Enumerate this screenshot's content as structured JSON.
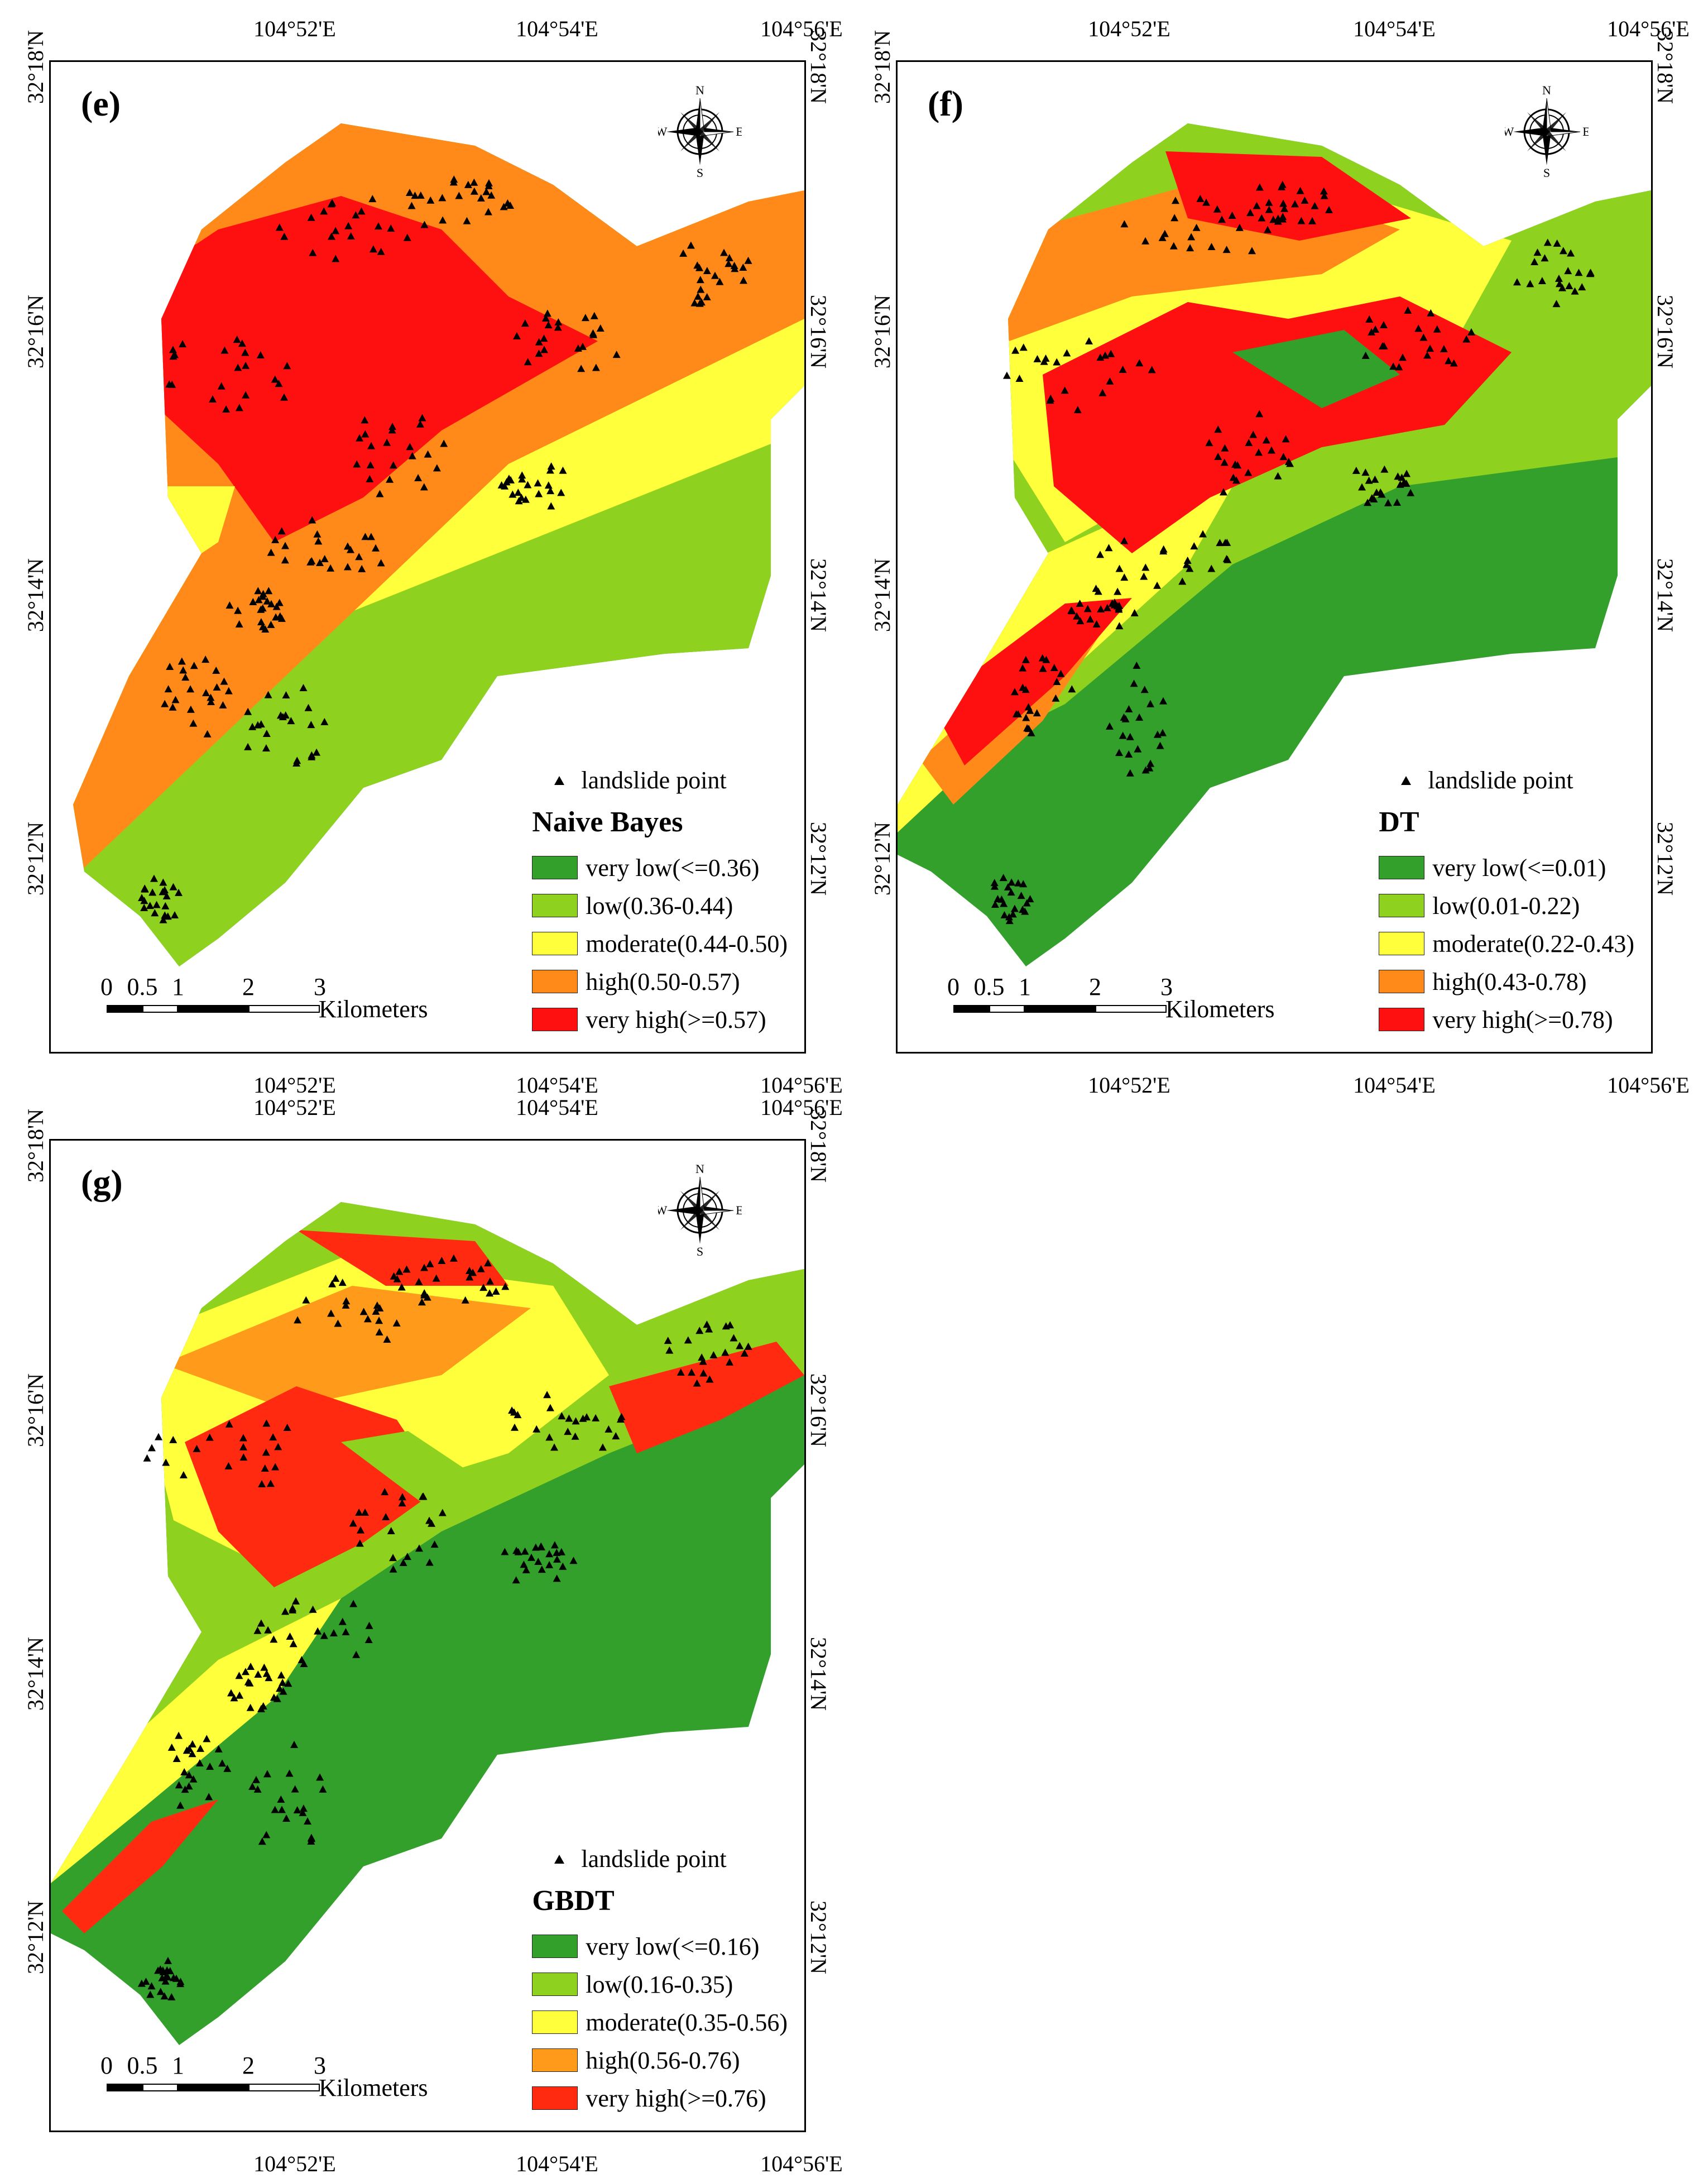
{
  "colors": {
    "very_low": "#33a02c",
    "low": "#8fd11f",
    "moderate": "#ffff3c",
    "high_nb": "#ff8a1a",
    "high_gbdt": "#ff9a1a",
    "very_high": "#ff1010",
    "landslide": "#000000"
  },
  "axes": {
    "lon_ticks": [
      "104°52'E",
      "104°54'E",
      "104°56'E"
    ],
    "lat_ticks": [
      "32°18'N",
      "32°16'N",
      "32°14'N",
      "32°12'N"
    ]
  },
  "compass": {
    "n": "N",
    "s": "S",
    "e": "E",
    "w": "W"
  },
  "scale": {
    "ticks": [
      "0",
      "0.5",
      "1",
      "2",
      "3"
    ],
    "unit": "Kilometers"
  },
  "legend_point_label": "landslide point",
  "panels": [
    {
      "id": "e",
      "label": "(e)",
      "title": "Naive Bayes",
      "classes": [
        {
          "label": "very low(<=0.36)",
          "color": "#33a02c"
        },
        {
          "label": "low(0.36-0.44)",
          "color": "#8fd11f"
        },
        {
          "label": "moderate(0.44-0.50)",
          "color": "#ffff3c"
        },
        {
          "label": "high(0.50-0.57)",
          "color": "#ff8a1a"
        },
        {
          "label": "very high(>=0.57)",
          "color": "#ff1010"
        }
      ]
    },
    {
      "id": "f",
      "label": "(f)",
      "title": "DT",
      "classes": [
        {
          "label": "very low(<=0.01)",
          "color": "#33a02c"
        },
        {
          "label": "low(0.01-0.22)",
          "color": "#8fd11f"
        },
        {
          "label": "moderate(0.22-0.43)",
          "color": "#ffff3c"
        },
        {
          "label": "high(0.43-0.78)",
          "color": "#ff8a1a"
        },
        {
          "label": "very high(>=0.78)",
          "color": "#ff1010"
        }
      ]
    },
    {
      "id": "g",
      "label": "(g)",
      "title": "GBDT",
      "classes": [
        {
          "label": "very low(<=0.16)",
          "color": "#33a02c"
        },
        {
          "label": "low(0.16-0.35)",
          "color": "#8fd11f"
        },
        {
          "label": "moderate(0.35-0.56)",
          "color": "#ffff3c"
        },
        {
          "label": "high(0.56-0.76)",
          "color": "#ff9a1a"
        },
        {
          "label": "very high(>=0.76)",
          "color": "#ff2a10"
        }
      ]
    }
  ]
}
